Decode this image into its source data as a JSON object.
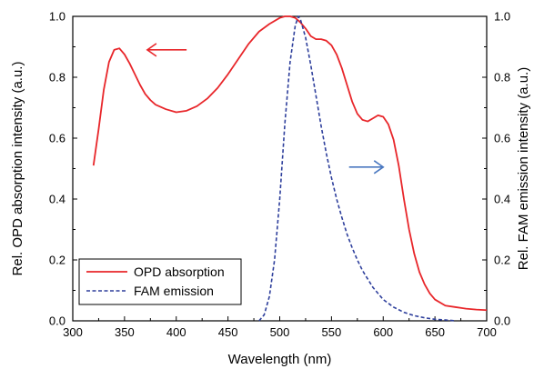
{
  "chart_data": {
    "type": "line",
    "xlabel": "Wavelength (nm)",
    "ylabel_left": "Rel. OPD absorption intensity (a.u.)",
    "ylabel_right": "Rel. FAM emission intensity (a.u.)",
    "xlim": [
      300,
      700
    ],
    "ylim_left": [
      0.0,
      1.0
    ],
    "ylim_right": [
      0.0,
      1.0
    ],
    "x_ticks": [
      "300",
      "350",
      "400",
      "450",
      "500",
      "550",
      "600",
      "650",
      "700"
    ],
    "y_ticks": [
      "0.0",
      "0.2",
      "0.4",
      "0.6",
      "0.8",
      "1.0"
    ],
    "grid": false,
    "legend_position": "bottom-left",
    "series": [
      {
        "name": "OPD absorption",
        "axis": "left",
        "color": "#e8262a",
        "style": "solid",
        "x": [
          320,
          325,
          330,
          335,
          340,
          345,
          350,
          355,
          360,
          365,
          370,
          375,
          380,
          390,
          400,
          410,
          420,
          430,
          440,
          450,
          460,
          470,
          480,
          490,
          500,
          505,
          510,
          515,
          520,
          525,
          530,
          535,
          540,
          545,
          550,
          555,
          560,
          565,
          570,
          575,
          580,
          585,
          590,
          595,
          600,
          605,
          610,
          615,
          620,
          625,
          630,
          635,
          640,
          645,
          650,
          660,
          670,
          680,
          690,
          700
        ],
        "values": [
          0.51,
          0.63,
          0.76,
          0.85,
          0.89,
          0.895,
          0.875,
          0.845,
          0.81,
          0.775,
          0.745,
          0.725,
          0.71,
          0.695,
          0.685,
          0.69,
          0.705,
          0.73,
          0.765,
          0.81,
          0.86,
          0.91,
          0.95,
          0.975,
          0.995,
          1.0,
          1.0,
          0.995,
          0.98,
          0.96,
          0.935,
          0.925,
          0.925,
          0.92,
          0.905,
          0.875,
          0.83,
          0.775,
          0.72,
          0.68,
          0.66,
          0.655,
          0.665,
          0.675,
          0.67,
          0.645,
          0.595,
          0.51,
          0.4,
          0.3,
          0.22,
          0.16,
          0.12,
          0.09,
          0.07,
          0.05,
          0.045,
          0.04,
          0.037,
          0.035
        ]
      },
      {
        "name": "FAM emission",
        "axis": "right",
        "color": "#2e3f9c",
        "style": "dashed",
        "x": [
          480,
          485,
          490,
          495,
          500,
          505,
          510,
          515,
          518,
          520,
          525,
          530,
          535,
          540,
          545,
          550,
          555,
          560,
          565,
          570,
          575,
          580,
          590,
          600,
          610,
          620,
          630,
          640,
          650,
          660,
          670
        ],
        "values": [
          0.0,
          0.02,
          0.08,
          0.2,
          0.4,
          0.65,
          0.85,
          0.97,
          1.0,
          0.99,
          0.93,
          0.84,
          0.74,
          0.64,
          0.55,
          0.47,
          0.4,
          0.34,
          0.285,
          0.24,
          0.2,
          0.165,
          0.11,
          0.07,
          0.045,
          0.028,
          0.017,
          0.01,
          0.005,
          0.003,
          0.0
        ]
      }
    ],
    "annotations": [
      {
        "type": "arrow",
        "direction": "left",
        "color": "#e8262a",
        "x": 410,
        "y": 0.89,
        "length_nm": 38
      },
      {
        "type": "arrow",
        "direction": "right",
        "color": "#4a78c0",
        "x": 567,
        "y": 0.505,
        "length_nm": 33
      }
    ]
  }
}
